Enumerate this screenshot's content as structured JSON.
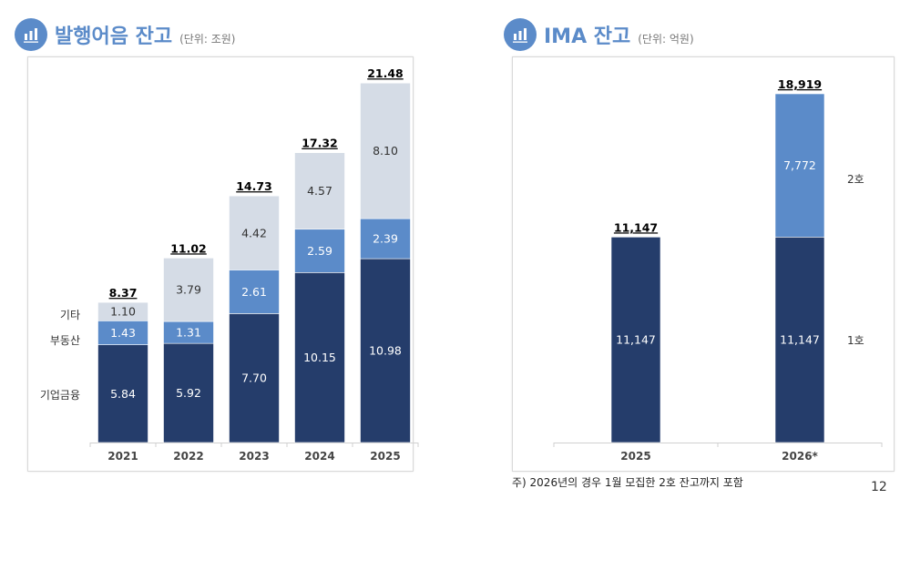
{
  "colors": {
    "accent": "#5b8bc9",
    "navy": "#253d6b",
    "mid": "#5b8bc9",
    "light": "#d5dce6"
  },
  "left_header": {
    "icon": "bar-chart-icon",
    "title": "발행어음 잔고",
    "unit": "(단위: 조원)"
  },
  "right_header": {
    "icon": "bar-chart-icon",
    "title": "IMA 잔고",
    "unit": "(단위: 억원)"
  },
  "chart_data": [
    {
      "type": "bar",
      "stacked": true,
      "title": "발행어음 잔고",
      "categories": [
        "2021",
        "2022",
        "2023",
        "2024",
        "2025"
      ],
      "series": [
        {
          "name": "기업금융",
          "color": "#253d6b",
          "values": [
            5.84,
            5.92,
            7.7,
            10.15,
            10.98
          ]
        },
        {
          "name": "부동산",
          "color": "#5b8bc9",
          "values": [
            1.43,
            1.31,
            2.61,
            2.59,
            2.39
          ]
        },
        {
          "name": "기타",
          "color": "#d5dce6",
          "values": [
            1.1,
            3.79,
            4.42,
            4.57,
            8.1
          ]
        }
      ],
      "totals": [
        "8.37",
        "11.02",
        "14.73",
        "17.32",
        "21.48"
      ],
      "labels": [
        [
          "5.84",
          "5.92",
          "7.70",
          "10.15",
          "10.98"
        ],
        [
          "1.43",
          "1.31",
          "2.61",
          "2.59",
          "2.39"
        ],
        [
          "1.10",
          "3.79",
          "4.42",
          "4.57",
          "8.10"
        ]
      ],
      "legend_placement": "left",
      "grid": false
    },
    {
      "type": "bar",
      "stacked": true,
      "title": "IMA 잔고",
      "categories": [
        "2025",
        "2026*"
      ],
      "series": [
        {
          "name": "1호",
          "color": "#253d6b",
          "values": [
            11147,
            11147
          ]
        },
        {
          "name": "2호",
          "color": "#5b8bc9",
          "values": [
            0,
            7772
          ]
        }
      ],
      "totals": [
        "11,147",
        "18,919"
      ],
      "labels": [
        [
          "11,147",
          "11,147"
        ],
        [
          "",
          "7,772"
        ]
      ],
      "legend_placement": "right",
      "grid": false
    }
  ],
  "footnote": "주) 2026년의 경우 1월 모집한 2호 잔고까지 포함",
  "page_number": "12"
}
